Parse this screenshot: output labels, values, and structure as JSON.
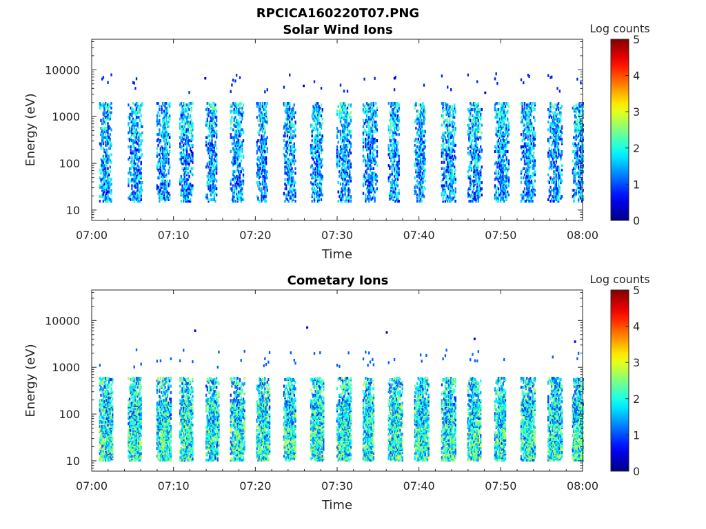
{
  "figure": {
    "title": "RPCICA160220T07.PNG"
  },
  "colorbar": {
    "label": "Log counts",
    "ticks": [
      "0",
      "1",
      "2",
      "3",
      "4",
      "5"
    ],
    "range": [
      0,
      5
    ],
    "colormap": "jet"
  },
  "chart_data": [
    {
      "type": "heatmap",
      "title": "Solar Wind Ions",
      "xlabel": "Time",
      "ylabel": "Energy (eV)",
      "x_ticks": [
        "07:00",
        "07:10",
        "07:20",
        "07:30",
        "07:40",
        "07:50",
        "08:00"
      ],
      "x_range": [
        "07:00",
        "08:00"
      ],
      "y_scale": "log",
      "y_ticks": [
        "10",
        "100",
        "1000",
        "10000"
      ],
      "y_range": [
        6,
        45000
      ],
      "bursts_start_times": [
        "07:01.5",
        "07:05.0",
        "07:08.5",
        "07:11.3",
        "07:14.5",
        "07:17.5",
        "07:20.7",
        "07:24.0",
        "07:27.3",
        "07:30.5",
        "07:33.7",
        "07:36.8",
        "07:40.0",
        "07:43.3",
        "07:46.5",
        "07:49.8",
        "07:53.0",
        "07:56.3",
        "07:59.3"
      ],
      "energy_band_eV": [
        15,
        2000
      ],
      "typical_log_counts": [
        0.5,
        2.2
      ],
      "isolated_high_energy_events_eV": [
        6500,
        4500,
        6500,
        3200
      ]
    },
    {
      "type": "heatmap",
      "title": "Cometary Ions",
      "xlabel": "Time",
      "ylabel": "Energy (eV)",
      "x_ticks": [
        "07:00",
        "07:10",
        "07:20",
        "07:30",
        "07:40",
        "07:50",
        "08:00"
      ],
      "x_range": [
        "07:00",
        "08:00"
      ],
      "y_scale": "log",
      "y_ticks": [
        "10",
        "100",
        "1000",
        "10000"
      ],
      "y_range": [
        6,
        45000
      ],
      "bursts_start_times": [
        "07:01.5",
        "07:05.0",
        "07:08.5",
        "07:11.3",
        "07:14.5",
        "07:17.5",
        "07:20.7",
        "07:24.0",
        "07:27.3",
        "07:30.5",
        "07:33.7",
        "07:36.8",
        "07:40.0",
        "07:43.3",
        "07:46.5",
        "07:49.8",
        "07:53.0",
        "07:56.3",
        "07:59.3"
      ],
      "energy_band_eV": [
        10,
        600
      ],
      "typical_log_counts": [
        0.8,
        2.8
      ],
      "isolated_high_energy_events_eV": [
        6000,
        7000,
        5500,
        4000,
        3500
      ]
    }
  ]
}
